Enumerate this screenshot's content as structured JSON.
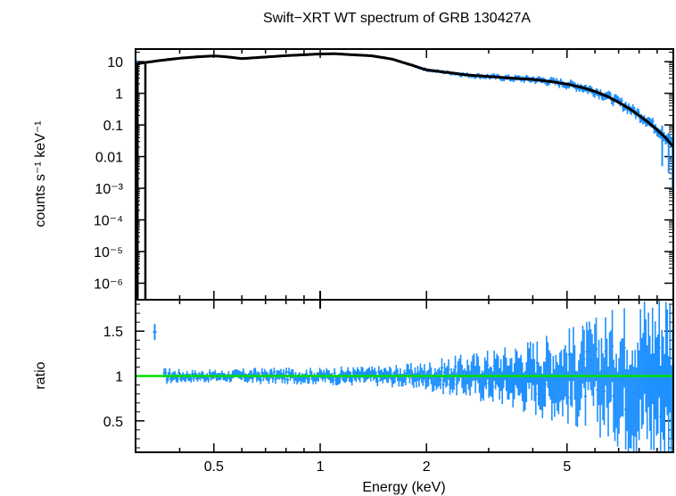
{
  "title": "Swift−XRT WT spectrum of GRB 130427A",
  "chart_data": [
    {
      "type": "scatter",
      "panel": "spectrum",
      "ylabel": "counts s⁻¹ keV⁻¹",
      "xscale": "log",
      "yscale": "log",
      "xlim": [
        0.3,
        10
      ],
      "ylim": [
        3e-07,
        25
      ],
      "yticks": [
        {
          "value": 10,
          "label": "10"
        },
        {
          "value": 1,
          "label": "1"
        },
        {
          "value": 0.1,
          "label": "0.1"
        },
        {
          "value": 0.01,
          "label": "0.01"
        },
        {
          "value": 0.001,
          "label": "10⁻³"
        },
        {
          "value": 0.0001,
          "label": "10⁻⁴"
        },
        {
          "value": 1e-05,
          "label": "10⁻⁵"
        },
        {
          "value": 1e-06,
          "label": "10⁻⁶"
        }
      ],
      "series": [
        {
          "kind": "data",
          "color": "#1e90ff",
          "x": [
            0.3,
            0.32,
            0.35,
            0.4,
            0.45,
            0.5,
            0.55,
            0.6,
            0.7,
            0.8,
            0.9,
            1.0,
            1.1,
            1.2,
            1.4,
            1.6,
            1.8,
            2.0,
            2.2,
            2.4,
            2.6,
            3.0,
            3.5,
            4.0,
            4.5,
            5.0,
            5.5,
            6.0,
            6.5,
            7.0,
            7.5,
            8.0,
            8.5,
            9.0,
            9.5,
            10.0
          ],
          "y": [
            8.8,
            9.6,
            11,
            13,
            14.5,
            15.5,
            14,
            12.5,
            14,
            15.5,
            16.5,
            17.5,
            18,
            17,
            15.5,
            12,
            8,
            5.5,
            4.8,
            4.3,
            3.8,
            3.4,
            3.0,
            2.8,
            2.4,
            2.0,
            1.6,
            1.2,
            0.85,
            0.55,
            0.35,
            0.22,
            0.14,
            0.08,
            0.045,
            0.025
          ]
        },
        {
          "kind": "model",
          "color": "#000000",
          "x": [
            0.3,
            0.32,
            0.35,
            0.4,
            0.45,
            0.5,
            0.55,
            0.6,
            0.7,
            0.8,
            0.9,
            1.0,
            1.1,
            1.2,
            1.4,
            1.6,
            1.8,
            2.0,
            2.2,
            2.4,
            2.6,
            3.0,
            3.5,
            4.0,
            4.5,
            5.0,
            5.5,
            6.0,
            6.5,
            7.0,
            7.5,
            8.0,
            8.5,
            9.0,
            9.5,
            10.0
          ],
          "y": [
            8.5,
            9.4,
            10.8,
            12.8,
            14.2,
            15.2,
            14,
            12.5,
            14,
            15.5,
            16.5,
            17.5,
            17.8,
            16.8,
            15.3,
            12,
            8,
            5.5,
            4.8,
            4.3,
            3.8,
            3.4,
            3.0,
            2.75,
            2.35,
            1.95,
            1.55,
            1.15,
            0.8,
            0.52,
            0.33,
            0.2,
            0.12,
            0.07,
            0.04,
            0.02
          ]
        }
      ]
    },
    {
      "type": "scatter",
      "panel": "ratio",
      "xlabel": "Energy (keV)",
      "ylabel": "ratio",
      "xscale": "log",
      "xlim": [
        0.3,
        10
      ],
      "ylim": [
        0.15,
        1.85
      ],
      "xticks": [
        {
          "value": 0.5,
          "label": "0.5"
        },
        {
          "value": 1,
          "label": "1"
        },
        {
          "value": 2,
          "label": "2"
        },
        {
          "value": 5,
          "label": "5"
        }
      ],
      "yticks": [
        {
          "value": 0.5,
          "label": "0.5"
        },
        {
          "value": 1,
          "label": "1"
        },
        {
          "value": 1.5,
          "label": "1.5"
        }
      ],
      "reference_line": {
        "y": 1,
        "color": "#00e000"
      },
      "series": [
        {
          "kind": "ratio",
          "color": "#1e90ff",
          "x": [
            0.34,
            0.37,
            0.42,
            0.48,
            0.55,
            0.65,
            0.75,
            0.85,
            1.0,
            1.2,
            1.4,
            1.7,
            2.0,
            2.4,
            2.8,
            3.3,
            3.8,
            4.5,
            5.2,
            6.0,
            7.0,
            8.0,
            9.0,
            9.8
          ],
          "y": [
            1.5,
            1.05,
            0.95,
            1.02,
            0.98,
            1.05,
            0.97,
            1.03,
            1.0,
            0.96,
            1.04,
            0.98,
            1.05,
            1.08,
            0.94,
            1.12,
            0.9,
            1.15,
            0.92,
            1.2,
            0.88,
            1.25,
            0.8,
            0.7
          ],
          "yerr": [
            0.05,
            0.05,
            0.04,
            0.04,
            0.04,
            0.05,
            0.05,
            0.05,
            0.05,
            0.06,
            0.06,
            0.07,
            0.09,
            0.12,
            0.15,
            0.18,
            0.22,
            0.26,
            0.3,
            0.35,
            0.42,
            0.5,
            0.55,
            0.6
          ]
        }
      ]
    }
  ]
}
